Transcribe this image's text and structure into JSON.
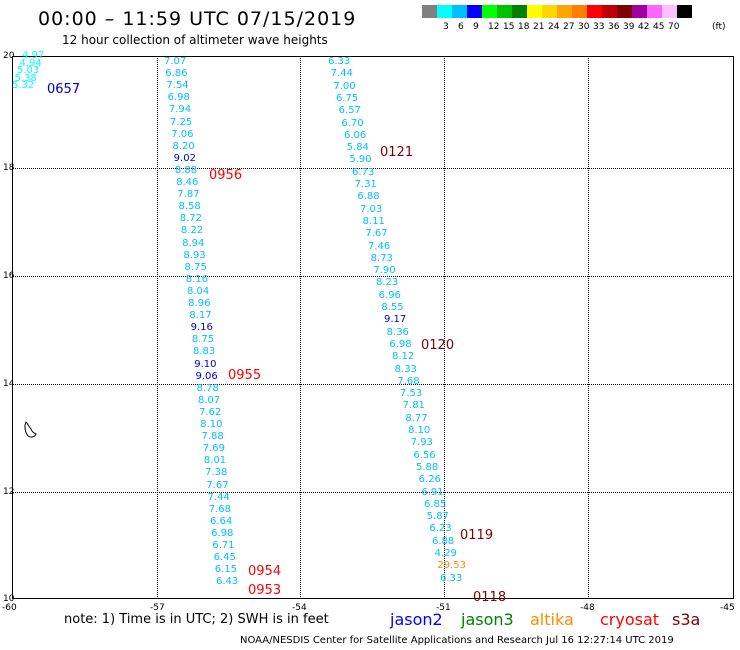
{
  "header": {
    "title": "00:00 – 11:59 UTC 07/15/2019",
    "subtitle": "12 hour collection of altimeter wave heights"
  },
  "legend": {
    "unit": "(ft)",
    "swatches": [
      {
        "color": "#808080",
        "label": ""
      },
      {
        "color": "#00ffff",
        "label": "3"
      },
      {
        "color": "#00bfff",
        "label": "6"
      },
      {
        "color": "#0000ff",
        "label": "9"
      },
      {
        "color": "#00ff00",
        "label": "12"
      },
      {
        "color": "#00c000",
        "label": "15"
      },
      {
        "color": "#008000",
        "label": "18"
      },
      {
        "color": "#ffff00",
        "label": "21"
      },
      {
        "color": "#ffd700",
        "label": "24"
      },
      {
        "color": "#ffa500",
        "label": "27"
      },
      {
        "color": "#ff7f00",
        "label": "30"
      },
      {
        "color": "#ff0000",
        "label": "33"
      },
      {
        "color": "#c00000",
        "label": "36"
      },
      {
        "color": "#800000",
        "label": "39"
      },
      {
        "color": "#a000a0",
        "label": "42"
      },
      {
        "color": "#ff66ff",
        "label": "45"
      },
      {
        "color": "#ffc0ff",
        "label": "70"
      },
      {
        "color": "#000000",
        "label": ""
      }
    ]
  },
  "axes": {
    "x_labels": [
      "-60",
      "-57",
      "-54",
      "-51",
      "-48",
      "-45"
    ],
    "y_labels": [
      "20",
      "18",
      "16",
      "14",
      "12",
      "10"
    ]
  },
  "tracks": [
    {
      "values": [
        "4.97",
        "4.94",
        "5.03",
        "5.38",
        "5.32"
      ],
      "color": "#00ffff"
    },
    {
      "values": [
        "7.07",
        "6.86",
        "7.54",
        "6.98",
        "7.94",
        "7.25",
        "7.06",
        "8.20",
        "9.02",
        "8.88",
        "8.46",
        "7.87",
        "8.58",
        "8.72",
        "8.22",
        "8.94",
        "8.93",
        "8.75",
        "8.16",
        "8.04",
        "8.96",
        "8.17",
        "9.16",
        "8.75",
        "8.83",
        "9.10",
        "9.06",
        "8.78",
        "8.07",
        "7.62",
        "8.10",
        "7.88",
        "7.69",
        "8.01",
        "7.38",
        "7.67",
        "7.44",
        "7.68",
        "6.64",
        "6.98",
        "6.71",
        "6.45",
        "6.15",
        "6.43"
      ],
      "color": "#00bfff"
    },
    {
      "values": [
        "6.33",
        "7.44",
        "7.00",
        "6.75",
        "6.57",
        "6.70",
        "6.06",
        "5.84",
        "5.90",
        "6.73",
        "7.31",
        "6.88",
        "7.03",
        "8.11",
        "7.67",
        "7.46",
        "8.73",
        "7.90",
        "8.23",
        "6.96",
        "8.55",
        "9.17",
        "8.36",
        "6.98",
        "8.12",
        "8.33",
        "7.68",
        "7.53",
        "7.81",
        "8.77",
        "8.10",
        "7.93",
        "6.56",
        "5.88",
        "6.26",
        "6.91",
        "6.85",
        "5.87",
        "6.23",
        "6.88",
        "4.29",
        "29.53",
        "6.33"
      ],
      "color": "#00bfff"
    }
  ],
  "time_labels": [
    {
      "text": "0657",
      "color": "#0000cc"
    },
    {
      "text": "0956",
      "color": "#ff0000"
    },
    {
      "text": "0955",
      "color": "#ff0000"
    },
    {
      "text": "0954",
      "color": "#ff0000"
    },
    {
      "text": "0953",
      "color": "#ff0000"
    },
    {
      "text": "0121",
      "color": "#800000"
    },
    {
      "text": "0120",
      "color": "#800000"
    },
    {
      "text": "0119",
      "color": "#800000"
    },
    {
      "text": "0118",
      "color": "#800000"
    }
  ],
  "footer": {
    "note": "note: 1) Time is in UTC; 2) SWH is in feet",
    "satellites": [
      {
        "name": "jason2",
        "color": "#0000ff"
      },
      {
        "name": "jason3",
        "color": "#008000"
      },
      {
        "name": "altika",
        "color": "#ff8c00"
      },
      {
        "name": "cryosat",
        "color": "#ff0000"
      },
      {
        "name": "s3a",
        "color": "#800000"
      }
    ],
    "credit": "NOAA/NESDIS Center for Satellite Applications and Research    Jul 16 12:27:14 UTC 2019"
  }
}
